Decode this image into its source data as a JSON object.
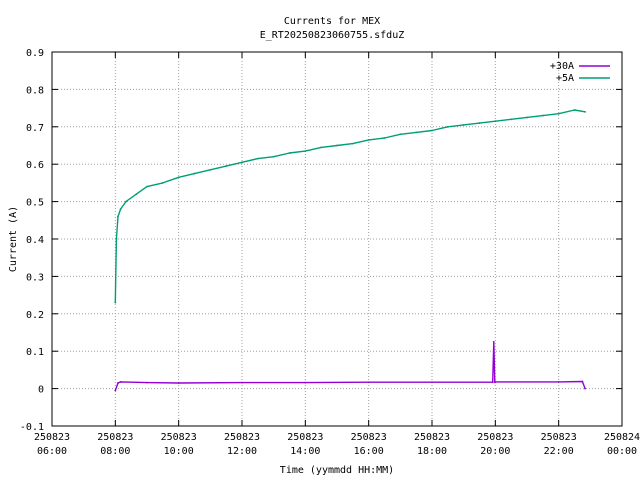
{
  "chart_data": {
    "type": "line",
    "title": "Currents for MEX",
    "subtitle": "E_RT20250823060755.sfduZ",
    "xlabel": "Time (yymmdd HH:MM)",
    "ylabel": "Current (A)",
    "xlim": [
      "2025-08-23 06:00",
      "2025-08-24 00:00"
    ],
    "ylim": [
      -0.1,
      0.9
    ],
    "grid": true,
    "legend_position": "top-right",
    "x_ticks": [
      {
        "date": "250823",
        "time": "06:00"
      },
      {
        "date": "250823",
        "time": "08:00"
      },
      {
        "date": "250823",
        "time": "10:00"
      },
      {
        "date": "250823",
        "time": "12:00"
      },
      {
        "date": "250823",
        "time": "14:00"
      },
      {
        "date": "250823",
        "time": "16:00"
      },
      {
        "date": "250823",
        "time": "18:00"
      },
      {
        "date": "250823",
        "time": "20:00"
      },
      {
        "date": "250823",
        "time": "22:00"
      },
      {
        "date": "250824",
        "time": "00:00"
      }
    ],
    "y_ticks": [
      "-0.1",
      "0",
      "0.1",
      "0.2",
      "0.3",
      "0.4",
      "0.5",
      "0.6",
      "0.7",
      "0.8",
      "0.9"
    ],
    "series": [
      {
        "name": "+30A",
        "color": "#9400d3",
        "x": [
          "2025-08-23 08:00",
          "2025-08-23 08:05",
          "2025-08-23 08:10",
          "2025-08-23 09:00",
          "2025-08-23 10:00",
          "2025-08-23 12:00",
          "2025-08-23 14:00",
          "2025-08-23 16:00",
          "2025-08-23 18:00",
          "2025-08-23 19:55",
          "2025-08-23 19:57",
          "2025-08-23 19:59",
          "2025-08-23 20:00",
          "2025-08-23 22:00",
          "2025-08-23 22:45",
          "2025-08-23 22:50"
        ],
        "values": [
          -0.005,
          0.015,
          0.018,
          0.016,
          0.015,
          0.016,
          0.016,
          0.017,
          0.017,
          0.017,
          0.125,
          0.017,
          0.018,
          0.018,
          0.019,
          0.0
        ]
      },
      {
        "name": "+5A",
        "color": "#009e73",
        "x": [
          "2025-08-23 08:00",
          "2025-08-23 08:02",
          "2025-08-23 08:05",
          "2025-08-23 08:10",
          "2025-08-23 08:20",
          "2025-08-23 08:40",
          "2025-08-23 09:00",
          "2025-08-23 09:30",
          "2025-08-23 10:00",
          "2025-08-23 10:30",
          "2025-08-23 11:00",
          "2025-08-23 11:30",
          "2025-08-23 12:00",
          "2025-08-23 12:30",
          "2025-08-23 13:00",
          "2025-08-23 13:30",
          "2025-08-23 14:00",
          "2025-08-23 14:30",
          "2025-08-23 15:00",
          "2025-08-23 15:30",
          "2025-08-23 16:00",
          "2025-08-23 16:30",
          "2025-08-23 17:00",
          "2025-08-23 17:30",
          "2025-08-23 18:00",
          "2025-08-23 18:30",
          "2025-08-23 19:00",
          "2025-08-23 19:30",
          "2025-08-23 20:00",
          "2025-08-23 20:30",
          "2025-08-23 21:00",
          "2025-08-23 21:30",
          "2025-08-23 22:00",
          "2025-08-23 22:30",
          "2025-08-23 22:50"
        ],
        "values": [
          0.23,
          0.4,
          0.46,
          0.48,
          0.5,
          0.52,
          0.54,
          0.55,
          0.565,
          0.575,
          0.585,
          0.595,
          0.605,
          0.615,
          0.62,
          0.63,
          0.635,
          0.645,
          0.65,
          0.655,
          0.665,
          0.67,
          0.68,
          0.685,
          0.69,
          0.7,
          0.705,
          0.71,
          0.715,
          0.72,
          0.725,
          0.73,
          0.735,
          0.745,
          0.74
        ]
      }
    ]
  }
}
